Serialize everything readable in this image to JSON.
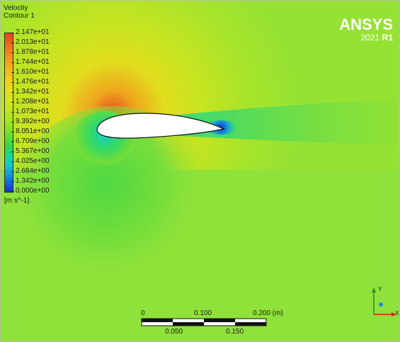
{
  "title": {
    "line1": "Velocity",
    "line2": "Contour 1"
  },
  "legend": {
    "labels": [
      "2.147e+01",
      "2.013e+01",
      "1.878e+01",
      "1.744e+01",
      "1.610e+01",
      "1.476e+01",
      "1.342e+01",
      "1.208e+01",
      "1.073e+01",
      "9.392e+00",
      "8.051e+00",
      "6.709e+00",
      "5.367e+00",
      "4.025e+00",
      "2.684e+00",
      "1.342e+00",
      "0.000e+00"
    ],
    "units": "[m s^-1]"
  },
  "logo": {
    "name": "ANSYS",
    "version_year": "2021",
    "version_release": "R1"
  },
  "scale_bar": {
    "top_labels": [
      "0",
      "0.100",
      "0.200  (m)"
    ],
    "bottom_labels": [
      "0.050",
      "0.150"
    ]
  },
  "axes": {
    "y_label": "Y",
    "x_label": "X"
  },
  "colors": {
    "background_field": "#8fe23a",
    "airfoil": "#ffffff",
    "high_velocity": "#e8431f",
    "low_velocity": "#1a2fd6"
  }
}
